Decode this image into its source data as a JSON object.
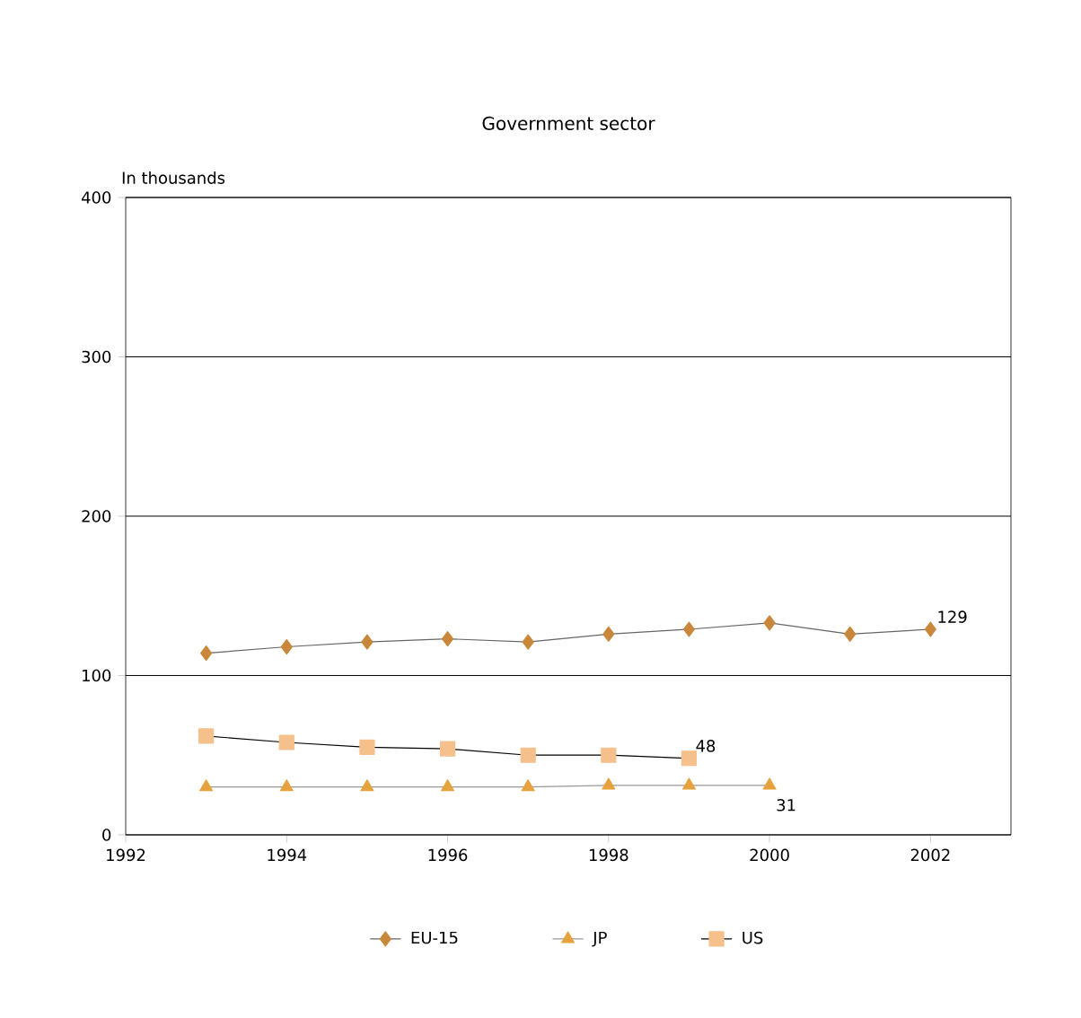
{
  "chart_data": {
    "type": "line",
    "title": "Government sector",
    "ylabel": "In thousands",
    "x": [
      1993,
      1994,
      1995,
      1996,
      1997,
      1998,
      1999,
      2000,
      2001,
      2002
    ],
    "series": [
      {
        "name": "EU-15",
        "color": "#c8873a",
        "marker": "diamond",
        "values": [
          114,
          118,
          121,
          123,
          121,
          126,
          129,
          133,
          126,
          129
        ]
      },
      {
        "name": "JP",
        "color": "#e6a23c",
        "marker": "triangle",
        "x": [
          1993,
          1994,
          1995,
          1996,
          1997,
          1998,
          1999,
          2000
        ],
        "values": [
          30,
          30,
          30,
          30,
          30,
          31,
          31,
          31
        ]
      },
      {
        "name": "US",
        "color": "#f5c08c",
        "marker": "square",
        "x": [
          1993,
          1994,
          1995,
          1996,
          1997,
          1998,
          1999
        ],
        "values": [
          62,
          58,
          55,
          54,
          50,
          50,
          48
        ]
      }
    ],
    "annotations": [
      {
        "text": "129",
        "x": 2002,
        "y": 129
      },
      {
        "text": "48",
        "x": 1999,
        "y": 48
      },
      {
        "text": "31",
        "x": 2000,
        "y": 31
      }
    ],
    "xlim": [
      1992,
      2003
    ],
    "xticks": [
      1992,
      1994,
      1996,
      1998,
      2000,
      2002
    ],
    "ylim": [
      0,
      400
    ],
    "yticks": [
      0,
      100,
      200,
      300,
      400
    ],
    "grid": "y",
    "legend": "bottom"
  }
}
